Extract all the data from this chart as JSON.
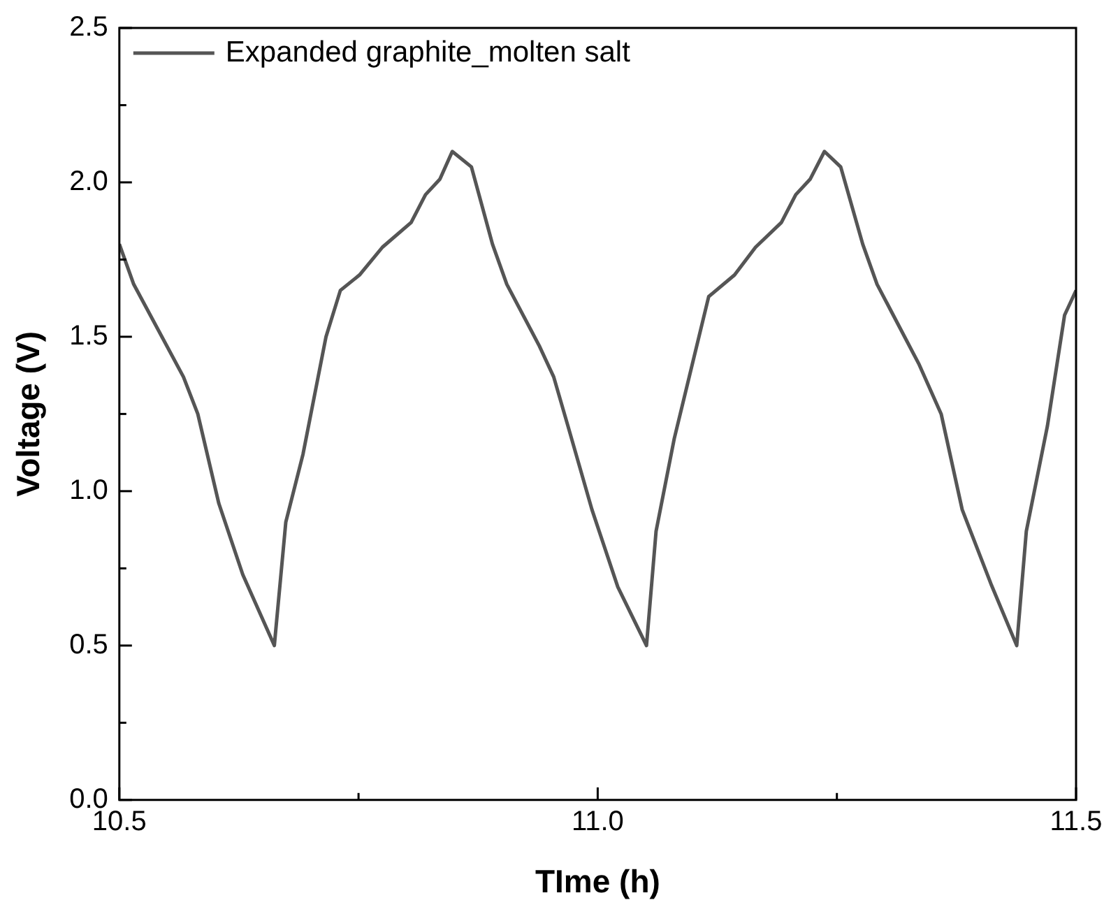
{
  "chart_data": {
    "type": "line",
    "xlabel": "TIme (h)",
    "ylabel": "Voltage (V)",
    "legend": "top left",
    "grid": false,
    "marker": "none",
    "line_style": "solid",
    "xlim": [
      10.5,
      11.5
    ],
    "ylim": [
      0,
      2.5
    ],
    "xticks": [
      {
        "value": 10.5,
        "label": "10.5"
      },
      {
        "value": 10.75,
        "label": null
      },
      {
        "value": 11,
        "label": "11.0"
      },
      {
        "value": 11.25,
        "label": null
      },
      {
        "value": 11.5,
        "label": "11.5"
      }
    ],
    "yticks": [
      {
        "value": 0,
        "label": "0.0"
      },
      {
        "value": 0.25,
        "label": null
      },
      {
        "value": 0.5,
        "label": "0.5"
      },
      {
        "value": 0.75,
        "label": null
      },
      {
        "value": 1,
        "label": "1.0"
      },
      {
        "value": 1.25,
        "label": null
      },
      {
        "value": 1.5,
        "label": "1.5"
      },
      {
        "value": 1.75,
        "label": null
      },
      {
        "value": 2,
        "label": "2.0"
      },
      {
        "value": 2.25,
        "label": null
      },
      {
        "value": 2.5,
        "label": "2.5"
      }
    ],
    "series": [
      {
        "name": "Expanded graphite_molten salt",
        "color": "#555555",
        "x": [
          10.5,
          10.515,
          10.567,
          10.582,
          10.604,
          10.629,
          10.662,
          10.674,
          10.692,
          10.716,
          10.731,
          10.751,
          10.775,
          10.805,
          10.82,
          10.835,
          10.848,
          10.868,
          10.89,
          10.905,
          10.939,
          10.954,
          10.969,
          10.994,
          11.021,
          11.051,
          11.061,
          11.08,
          11.116,
          11.143,
          11.165,
          11.192,
          11.207,
          11.222,
          11.237,
          11.254,
          11.277,
          11.292,
          11.336,
          11.359,
          11.381,
          11.411,
          11.438,
          11.448,
          11.47,
          11.488,
          11.5
        ],
        "values": [
          1.8,
          1.67,
          1.37,
          1.25,
          0.96,
          0.73,
          0.5,
          0.9,
          1.12,
          1.5,
          1.65,
          1.7,
          1.79,
          1.87,
          1.96,
          2.01,
          2.1,
          2.05,
          1.8,
          1.67,
          1.47,
          1.37,
          1.21,
          0.94,
          0.69,
          0.5,
          0.87,
          1.17,
          1.63,
          1.7,
          1.79,
          1.87,
          1.96,
          2.01,
          2.1,
          2.05,
          1.8,
          1.67,
          1.41,
          1.25,
          0.94,
          0.7,
          0.5,
          0.87,
          1.21,
          1.57,
          1.65
        ]
      }
    ]
  }
}
